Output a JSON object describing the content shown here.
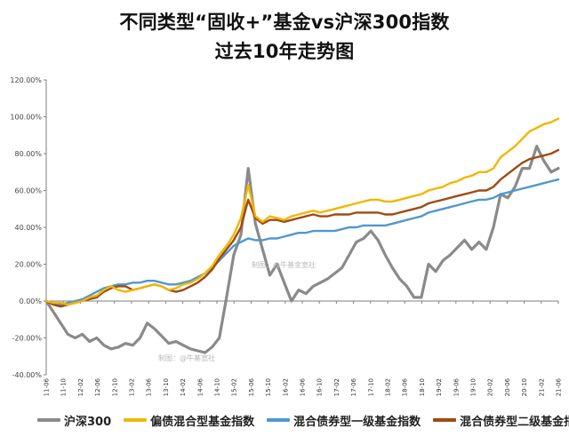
{
  "title_lines": [
    "不同类型“固收+”基金vs沪深300指数",
    "过去10年走势图"
  ],
  "watermarks": [
    "制图：@牛基金宽社",
    "制图：@牛基宽社"
  ],
  "chart_data": {
    "type": "line",
    "title": "不同类型“固收+”基金vs沪深300指数 过去10年走势图",
    "xlabel": "",
    "ylabel": "",
    "ylim": [
      -0.4,
      1.2
    ],
    "yticks": [
      -0.4,
      -0.2,
      0.0,
      0.2,
      0.4,
      0.6,
      0.8,
      1.0,
      1.2
    ],
    "ytick_labels": [
      "-40.00%",
      "-20.00%",
      "0.00%",
      "20.00%",
      "40.00%",
      "60.00%",
      "80.00%",
      "100.00%",
      "120.00%"
    ],
    "xticks": [
      "11-06",
      "11-10",
      "12-02",
      "12-06",
      "12-10",
      "13-02",
      "13-06",
      "13-10",
      "14-02",
      "14-06",
      "14-10",
      "15-02",
      "15-06",
      "15-10",
      "16-02",
      "16-06",
      "16-10",
      "17-02",
      "17-06",
      "17-10",
      "18-02",
      "18-06",
      "18-10",
      "19-02",
      "19-06",
      "19-10",
      "20-02",
      "20-06",
      "20-10",
      "21-02",
      "21-06"
    ],
    "grid": false,
    "legend_position": "bottom",
    "series": [
      {
        "name": "沪深300",
        "color": "#8a8a8a",
        "values": [
          0.0,
          -0.06,
          -0.12,
          -0.18,
          -0.2,
          -0.18,
          -0.22,
          -0.2,
          -0.24,
          -0.26,
          -0.25,
          -0.23,
          -0.24,
          -0.2,
          -0.12,
          -0.15,
          -0.19,
          -0.23,
          -0.22,
          -0.24,
          -0.26,
          -0.27,
          -0.28,
          -0.25,
          -0.2,
          0.02,
          0.25,
          0.36,
          0.72,
          0.42,
          0.28,
          0.14,
          0.2,
          0.1,
          0.0,
          0.06,
          0.04,
          0.08,
          0.1,
          0.12,
          0.15,
          0.18,
          0.25,
          0.32,
          0.34,
          0.38,
          0.33,
          0.25,
          0.18,
          0.12,
          0.08,
          0.02,
          0.02,
          0.2,
          0.16,
          0.22,
          0.25,
          0.29,
          0.33,
          0.28,
          0.32,
          0.28,
          0.4,
          0.58,
          0.56,
          0.62,
          0.72,
          0.72,
          0.84,
          0.76,
          0.7,
          0.72
        ]
      },
      {
        "name": "偏债混合型基金指数",
        "color": "#f2b600",
        "values": [
          0.0,
          -0.01,
          -0.01,
          -0.02,
          -0.01,
          0.0,
          0.02,
          0.03,
          0.06,
          0.08,
          0.06,
          0.05,
          0.06,
          0.07,
          0.08,
          0.09,
          0.08,
          0.06,
          0.07,
          0.09,
          0.1,
          0.12,
          0.15,
          0.19,
          0.25,
          0.3,
          0.36,
          0.45,
          0.63,
          0.46,
          0.43,
          0.46,
          0.45,
          0.44,
          0.46,
          0.47,
          0.48,
          0.49,
          0.48,
          0.49,
          0.5,
          0.51,
          0.52,
          0.53,
          0.54,
          0.55,
          0.55,
          0.54,
          0.54,
          0.55,
          0.56,
          0.57,
          0.58,
          0.6,
          0.61,
          0.62,
          0.64,
          0.65,
          0.67,
          0.68,
          0.7,
          0.7,
          0.72,
          0.78,
          0.81,
          0.84,
          0.88,
          0.92,
          0.94,
          0.96,
          0.97,
          0.99
        ]
      },
      {
        "name": "混合债券型一级基金指数",
        "color": "#4f98cf",
        "values": [
          0.0,
          -0.02,
          -0.02,
          -0.01,
          0.0,
          0.01,
          0.03,
          0.05,
          0.07,
          0.08,
          0.09,
          0.09,
          0.1,
          0.1,
          0.11,
          0.11,
          0.1,
          0.09,
          0.09,
          0.1,
          0.11,
          0.13,
          0.15,
          0.18,
          0.22,
          0.26,
          0.3,
          0.32,
          0.34,
          0.33,
          0.33,
          0.34,
          0.34,
          0.35,
          0.36,
          0.37,
          0.37,
          0.38,
          0.38,
          0.38,
          0.38,
          0.39,
          0.4,
          0.4,
          0.41,
          0.41,
          0.41,
          0.41,
          0.42,
          0.43,
          0.44,
          0.45,
          0.46,
          0.48,
          0.49,
          0.5,
          0.51,
          0.52,
          0.53,
          0.54,
          0.55,
          0.55,
          0.56,
          0.58,
          0.59,
          0.6,
          0.61,
          0.62,
          0.63,
          0.64,
          0.65,
          0.66
        ]
      },
      {
        "name": "混合债券型二级基金指数",
        "color": "#a04a13",
        "values": [
          0.0,
          -0.02,
          -0.03,
          -0.02,
          -0.01,
          0.0,
          0.01,
          0.02,
          0.05,
          0.07,
          0.08,
          0.08,
          0.06,
          0.07,
          0.08,
          0.09,
          0.08,
          0.06,
          0.05,
          0.06,
          0.08,
          0.1,
          0.13,
          0.17,
          0.23,
          0.28,
          0.33,
          0.4,
          0.55,
          0.45,
          0.42,
          0.44,
          0.44,
          0.43,
          0.44,
          0.45,
          0.46,
          0.47,
          0.46,
          0.46,
          0.47,
          0.47,
          0.47,
          0.48,
          0.48,
          0.48,
          0.48,
          0.47,
          0.47,
          0.48,
          0.49,
          0.5,
          0.51,
          0.53,
          0.54,
          0.55,
          0.56,
          0.57,
          0.58,
          0.59,
          0.6,
          0.6,
          0.62,
          0.66,
          0.69,
          0.72,
          0.75,
          0.77,
          0.78,
          0.79,
          0.8,
          0.82
        ]
      }
    ]
  }
}
